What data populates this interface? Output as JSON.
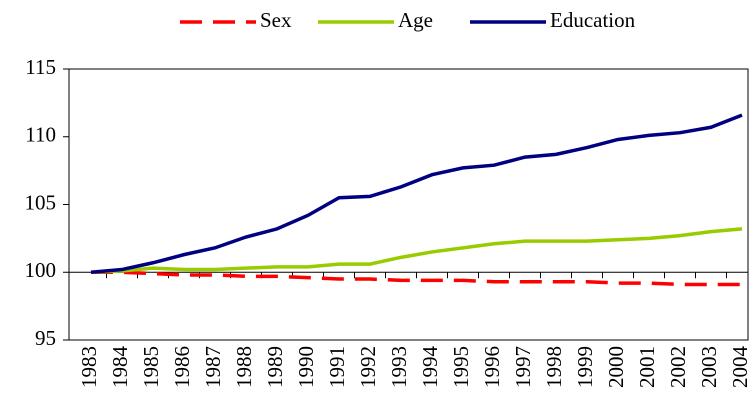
{
  "chart_data": {
    "type": "line",
    "categories": [
      "1983",
      "1984",
      "1985",
      "1986",
      "1987",
      "1988",
      "1989",
      "1990",
      "1991",
      "1992",
      "1993",
      "1994",
      "1995",
      "1996",
      "1997",
      "1998",
      "1999",
      "2000",
      "2001",
      "2002",
      "2003",
      "2004"
    ],
    "series": [
      {
        "name": "Sex",
        "color": "#ff0000",
        "dashed": true,
        "values": [
          100,
          100,
          99.9,
          99.8,
          99.8,
          99.7,
          99.7,
          99.6,
          99.5,
          99.5,
          99.4,
          99.4,
          99.4,
          99.3,
          99.3,
          99.3,
          99.3,
          99.2,
          99.2,
          99.1,
          99.1,
          99.1
        ]
      },
      {
        "name": "Age",
        "color": "#99cc00",
        "dashed": false,
        "values": [
          100,
          100.1,
          100.3,
          100.2,
          100.2,
          100.3,
          100.4,
          100.4,
          100.6,
          100.6,
          101.1,
          101.5,
          101.8,
          102.1,
          102.3,
          102.3,
          102.3,
          102.4,
          102.5,
          102.7,
          103,
          103.2
        ]
      },
      {
        "name": "Education",
        "color": "#000080",
        "dashed": false,
        "values": [
          100,
          100.2,
          100.7,
          101.3,
          101.8,
          102.6,
          103.2,
          104.2,
          105.5,
          105.6,
          106.3,
          107.2,
          107.7,
          107.9,
          108.5,
          108.7,
          109.2,
          109.8,
          110.1,
          110.3,
          110.7,
          111.6
        ]
      }
    ],
    "ylim": [
      95,
      115
    ],
    "yticks": [
      95,
      100,
      105,
      110,
      115
    ],
    "x_axis_crosses": 100,
    "legend": "top"
  }
}
